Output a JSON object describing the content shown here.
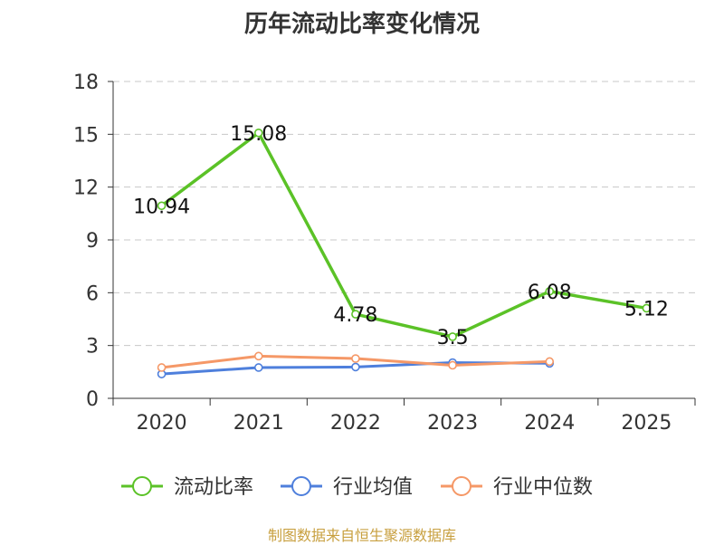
{
  "chart_data": {
    "type": "line",
    "title": "历年流动比率变化情况",
    "categories": [
      "2020",
      "2021",
      "2022",
      "2023",
      "2024",
      "2025"
    ],
    "ylim": [
      0,
      18
    ],
    "yticks": [
      0,
      3,
      6,
      9,
      12,
      15,
      18
    ],
    "grid": true,
    "legend_position": "bottom",
    "series": [
      {
        "name": "流动比率",
        "color": "#5bc227",
        "values": [
          10.94,
          15.08,
          4.78,
          3.5,
          6.08,
          5.12
        ],
        "labels": [
          "10.94",
          "15.08",
          "4.78",
          "3.5",
          "6.08",
          "5.12"
        ]
      },
      {
        "name": "行业均值",
        "color": "#4e7fdc",
        "values": [
          1.38,
          1.75,
          1.78,
          2.03,
          1.99,
          null
        ]
      },
      {
        "name": "行业中位数",
        "color": "#f59867",
        "values": [
          1.75,
          2.4,
          2.26,
          1.88,
          2.09,
          null
        ]
      }
    ]
  },
  "source": "制图数据来自恒生聚源数据库"
}
